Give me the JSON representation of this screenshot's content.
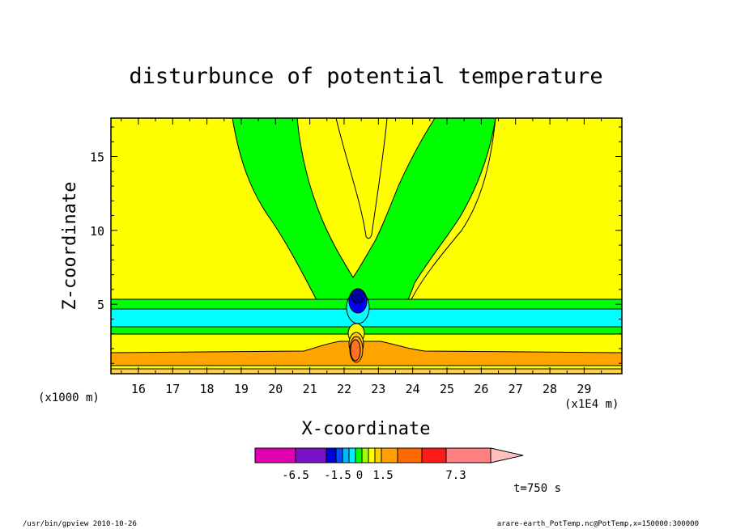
{
  "chart_data": {
    "type": "contour",
    "title": "disturbunce of potential temperature",
    "xlabel": "X-coordinate",
    "ylabel": "Z-coordinate",
    "x_unit_note": "(x1E4 m)",
    "y_unit_note": "(x1000 m)",
    "xlim": [
      15.2,
      30.1
    ],
    "ylim": [
      0.3,
      17.6
    ],
    "x_ticks": [
      16,
      17,
      18,
      19,
      20,
      21,
      22,
      23,
      24,
      25,
      26,
      27,
      28,
      29
    ],
    "y_ticks": [
      5,
      10,
      15
    ],
    "colorbar": {
      "tick_labels": [
        "-6.5",
        "-1.5",
        "0",
        "1.5",
        "7.3"
      ],
      "colors": [
        "#e000b0",
        "#7a10c8",
        "#0000d8",
        "#0050ff",
        "#00b8ff",
        "#00f0ff",
        "#00ff00",
        "#a0ff00",
        "#ffff00",
        "#ffd000",
        "#ffa000",
        "#ff6a00",
        "#ff1a1a",
        "#ff8080",
        "#ffc0c0"
      ]
    },
    "field_colors": {
      "background": "#ffff00",
      "plume": "#00ff00",
      "cyan_band": "#00ffff",
      "orange": "#ffa500",
      "dark_orange": "#ff7020",
      "core_dark": "#0000a0",
      "core_mid": "#0000ff"
    },
    "annotation": "t=750 s"
  },
  "footer": {
    "left": "/usr/bin/gpview   2010-10-26",
    "right": "arare-earth_PotTemp.nc@PotTemp,x=150000:300000"
  }
}
